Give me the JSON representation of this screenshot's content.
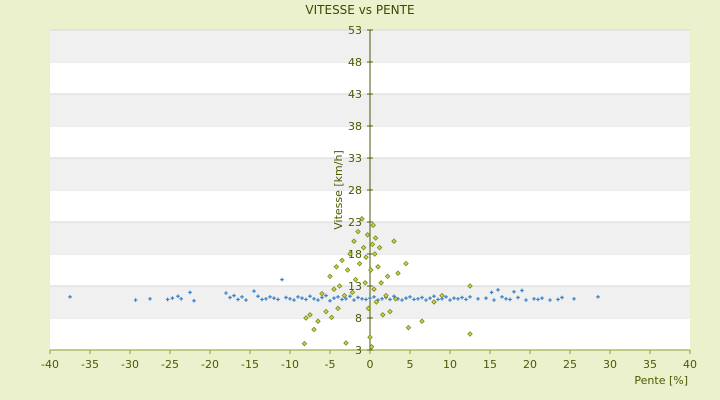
{
  "chart_data": {
    "type": "scatter",
    "title": "VITESSE vs PENTE",
    "xlabel": "Pente [%]",
    "ylabel": "Vitesse [km/h]",
    "xlim": [
      -40,
      40
    ],
    "ylim": [
      3,
      53
    ],
    "xticks": [
      "-40",
      "-35",
      "-30",
      "-25",
      "-20",
      "-15",
      "-10",
      "-5",
      "0",
      "5",
      "10",
      "15",
      "20",
      "25",
      "30",
      "35",
      "40"
    ],
    "yticks": [
      "3",
      "8",
      "13",
      "18",
      "23",
      "28",
      "33",
      "38",
      "43",
      "48",
      "53"
    ],
    "grid": "horizontal-bands",
    "colors": {
      "series1": "#3a80c8",
      "series2": "#7a8a10",
      "background": "#ecf1cd",
      "band": "#f0f0f0"
    },
    "series": [
      {
        "marker": "plus",
        "points": [
          [
            -37.5,
            11.3
          ],
          [
            -29.3,
            10.8
          ],
          [
            -27.5,
            11.0
          ],
          [
            -25.3,
            10.9
          ],
          [
            -24.7,
            11.1
          ],
          [
            -24.0,
            11.4
          ],
          [
            -23.6,
            11.0
          ],
          [
            -22.5,
            12.0
          ],
          [
            -22.0,
            10.7
          ],
          [
            -18.0,
            11.9
          ],
          [
            -17.5,
            11.2
          ],
          [
            -17.0,
            11.5
          ],
          [
            -16.5,
            10.9
          ],
          [
            -16.0,
            11.3
          ],
          [
            -15.5,
            10.8
          ],
          [
            -14.5,
            12.2
          ],
          [
            -14.0,
            11.4
          ],
          [
            -13.5,
            10.9
          ],
          [
            -13.0,
            11.0
          ],
          [
            -12.5,
            11.3
          ],
          [
            -12.0,
            11.1
          ],
          [
            -11.5,
            10.9
          ],
          [
            -11.0,
            14.0
          ],
          [
            -10.5,
            11.2
          ],
          [
            -10.0,
            11.0
          ],
          [
            -9.5,
            10.8
          ],
          [
            -9.0,
            11.3
          ],
          [
            -8.5,
            11.1
          ],
          [
            -8.0,
            10.9
          ],
          [
            -7.5,
            11.4
          ],
          [
            -7.0,
            11.0
          ],
          [
            -6.5,
            10.8
          ],
          [
            -6.0,
            11.2
          ],
          [
            -5.5,
            11.5
          ],
          [
            -5.0,
            10.7
          ],
          [
            -4.5,
            11.1
          ],
          [
            -4.0,
            11.3
          ],
          [
            -3.5,
            10.9
          ],
          [
            -3.0,
            11.0
          ],
          [
            -2.5,
            11.4
          ],
          [
            -2.0,
            10.8
          ],
          [
            -1.5,
            11.2
          ],
          [
            -1.0,
            11.0
          ],
          [
            -0.5,
            10.9
          ],
          [
            0.0,
            11.1
          ],
          [
            0.5,
            11.3
          ],
          [
            1.0,
            10.8
          ],
          [
            1.5,
            11.0
          ],
          [
            2.0,
            11.2
          ],
          [
            2.5,
            10.9
          ],
          [
            3.0,
            11.4
          ],
          [
            3.5,
            11.0
          ],
          [
            4.0,
            10.8
          ],
          [
            4.5,
            11.1
          ],
          [
            5.0,
            11.3
          ],
          [
            5.5,
            10.9
          ],
          [
            6.0,
            11.0
          ],
          [
            6.5,
            11.2
          ],
          [
            7.0,
            10.8
          ],
          [
            7.5,
            11.1
          ],
          [
            8.0,
            11.4
          ],
          [
            8.5,
            10.9
          ],
          [
            9.0,
            11.0
          ],
          [
            9.5,
            11.3
          ],
          [
            10.0,
            10.8
          ],
          [
            10.5,
            11.1
          ],
          [
            11.0,
            11.0
          ],
          [
            11.5,
            11.2
          ],
          [
            12.0,
            10.9
          ],
          [
            12.5,
            11.3
          ],
          [
            13.5,
            11.0
          ],
          [
            14.5,
            11.1
          ],
          [
            15.2,
            12.0
          ],
          [
            15.5,
            10.8
          ],
          [
            16.0,
            12.4
          ],
          [
            16.5,
            11.3
          ],
          [
            17.0,
            11.0
          ],
          [
            17.5,
            10.9
          ],
          [
            18.0,
            12.1
          ],
          [
            18.5,
            11.2
          ],
          [
            19.0,
            12.3
          ],
          [
            19.5,
            10.8
          ],
          [
            20.5,
            11.0
          ],
          [
            21.0,
            10.9
          ],
          [
            21.5,
            11.1
          ],
          [
            22.5,
            10.8
          ],
          [
            23.5,
            10.9
          ],
          [
            24.0,
            11.2
          ],
          [
            25.5,
            11.0
          ],
          [
            28.5,
            11.3
          ]
        ]
      },
      {
        "marker": "diamond",
        "points": [
          [
            -8.2,
            4.0
          ],
          [
            -8.0,
            8.0
          ],
          [
            -7.5,
            8.5
          ],
          [
            -7.0,
            6.2
          ],
          [
            -6.5,
            7.5
          ],
          [
            -6.0,
            11.8
          ],
          [
            -5.5,
            9.0
          ],
          [
            -5.0,
            14.5
          ],
          [
            -4.8,
            8.1
          ],
          [
            -4.5,
            12.5
          ],
          [
            -4.2,
            16.0
          ],
          [
            -4.0,
            9.5
          ],
          [
            -3.8,
            13.0
          ],
          [
            -3.5,
            17.0
          ],
          [
            -3.2,
            11.5
          ],
          [
            -3.0,
            4.1
          ],
          [
            -2.8,
            15.5
          ],
          [
            -2.5,
            18.0
          ],
          [
            -2.2,
            12.0
          ],
          [
            -2.0,
            20.0
          ],
          [
            -1.8,
            14.0
          ],
          [
            -1.5,
            21.5
          ],
          [
            -1.3,
            16.5
          ],
          [
            -1.0,
            23.5
          ],
          [
            -0.8,
            19.0
          ],
          [
            -0.6,
            13.5
          ],
          [
            -0.5,
            17.5
          ],
          [
            -0.3,
            21.0
          ],
          [
            -0.2,
            9.5
          ],
          [
            0.0,
            5.0
          ],
          [
            0.1,
            15.5
          ],
          [
            0.2,
            3.5
          ],
          [
            0.3,
            19.5
          ],
          [
            0.4,
            22.5
          ],
          [
            0.5,
            12.5
          ],
          [
            0.6,
            18.0
          ],
          [
            0.7,
            20.5
          ],
          [
            0.8,
            10.5
          ],
          [
            1.0,
            16.0
          ],
          [
            1.2,
            19.0
          ],
          [
            1.4,
            13.5
          ],
          [
            1.6,
            8.5
          ],
          [
            2.0,
            11.5
          ],
          [
            2.2,
            14.5
          ],
          [
            2.5,
            9.0
          ],
          [
            3.0,
            20.0
          ],
          [
            3.2,
            11.0
          ],
          [
            3.5,
            15.0
          ],
          [
            4.5,
            16.5
          ],
          [
            4.8,
            6.5
          ],
          [
            6.5,
            7.5
          ],
          [
            8.0,
            10.5
          ],
          [
            9.0,
            11.5
          ],
          [
            12.5,
            13.0
          ],
          [
            12.5,
            5.5
          ]
        ]
      }
    ]
  }
}
